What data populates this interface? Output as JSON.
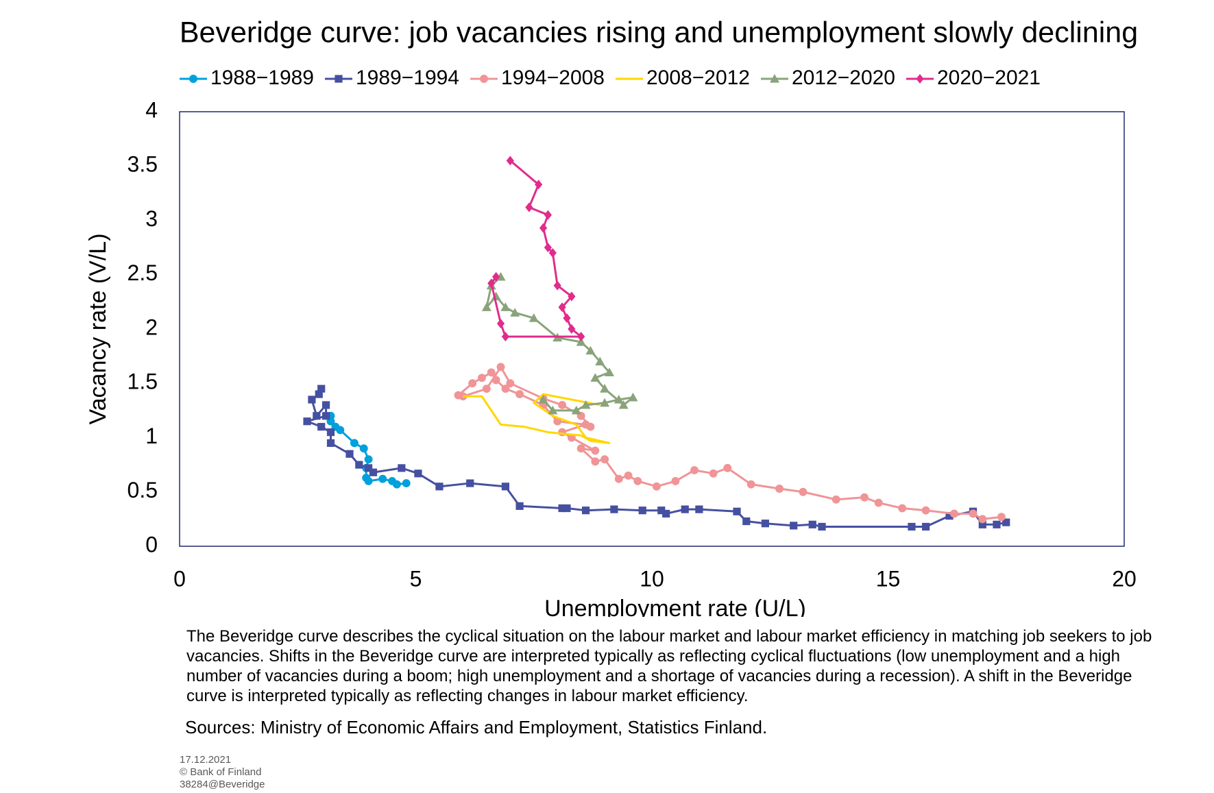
{
  "chart_data": {
    "type": "line",
    "title": "Beveridge curve: job vacancies rising and unemployment slowly declining",
    "x_label": "Unemployment rate (U/L)",
    "y_label": "Vacancy rate (V/L)",
    "xlim": [
      0,
      20
    ],
    "xticks": [
      0,
      5,
      10,
      15,
      20
    ],
    "ylim": [
      0,
      4
    ],
    "yticks": [
      0,
      0.5,
      1,
      1.5,
      2,
      2.5,
      3,
      3.5,
      4
    ],
    "grid": false,
    "legend": "top",
    "series": [
      {
        "name": "1988−1989",
        "color": "#00a0dc",
        "marker": "circle",
        "x": [
          4.8,
          4.6,
          4.5,
          4.3,
          4.0,
          3.95,
          3.95,
          4.0,
          3.9,
          3.7,
          3.4,
          3.3,
          3.2,
          3.2
        ],
        "values": [
          0.58,
          0.57,
          0.6,
          0.62,
          0.6,
          0.63,
          0.72,
          0.8,
          0.9,
          0.95,
          1.07,
          1.1,
          1.15,
          1.2
        ]
      },
      {
        "name": "1989−1994",
        "color": "#4650a0",
        "marker": "square",
        "x": [
          3.0,
          2.95,
          2.8,
          2.9,
          3.1,
          3.1,
          2.7,
          3.0,
          3.2,
          3.2,
          3.6,
          3.8,
          4.0,
          4.1,
          4.7,
          5.05,
          5.5,
          6.15,
          6.9,
          7.2,
          8.1,
          8.2,
          8.6,
          9.2,
          9.8,
          10.2,
          10.3,
          10.7,
          11.0,
          11.8,
          12.0,
          12.4,
          13.0,
          13.4,
          13.6,
          15.5,
          15.8,
          16.3,
          16.8,
          17.0,
          17.3,
          17.5
        ],
        "values": [
          1.45,
          1.4,
          1.35,
          1.2,
          1.3,
          1.2,
          1.15,
          1.1,
          1.05,
          0.95,
          0.85,
          0.75,
          0.72,
          0.68,
          0.72,
          0.67,
          0.55,
          0.58,
          0.55,
          0.37,
          0.35,
          0.35,
          0.33,
          0.34,
          0.33,
          0.33,
          0.3,
          0.34,
          0.34,
          0.32,
          0.23,
          0.21,
          0.19,
          0.2,
          0.18,
          0.18,
          0.18,
          0.28,
          0.32,
          0.2,
          0.2,
          0.22
        ]
      },
      {
        "name": "1994−2008",
        "color": "#f09496",
        "marker": "circle",
        "x": [
          17.4,
          17.0,
          16.8,
          16.4,
          15.8,
          15.3,
          14.8,
          14.5,
          13.9,
          13.2,
          12.7,
          12.1,
          11.6,
          11.3,
          10.9,
          10.5,
          10.1,
          9.7,
          9.5,
          9.3,
          9.0,
          8.8,
          8.5,
          8.8,
          8.3,
          8.1,
          8.6,
          8.0,
          7.7,
          7.2,
          6.9,
          6.7,
          6.6,
          6.4,
          6.2,
          5.9,
          6.0,
          6.5,
          6.8,
          7.0,
          7.7,
          8.1,
          8.5,
          8.7
        ],
        "values": [
          0.27,
          0.25,
          0.3,
          0.3,
          0.33,
          0.35,
          0.4,
          0.45,
          0.43,
          0.5,
          0.53,
          0.57,
          0.72,
          0.67,
          0.7,
          0.6,
          0.55,
          0.6,
          0.65,
          0.62,
          0.8,
          0.78,
          0.9,
          0.88,
          1.0,
          1.05,
          1.12,
          1.15,
          1.3,
          1.4,
          1.45,
          1.53,
          1.6,
          1.55,
          1.5,
          1.39,
          1.38,
          1.45,
          1.65,
          1.5,
          1.36,
          1.3,
          1.2,
          1.1
        ]
      },
      {
        "name": "2008−2012",
        "color": "#ffd700",
        "marker": "none",
        "x": [
          6.0,
          6.4,
          6.6,
          6.8,
          7.3,
          7.8,
          8.5,
          8.7,
          9.1,
          8.6,
          8.4,
          7.9,
          7.5,
          7.7,
          8.3,
          8.9
        ],
        "values": [
          1.38,
          1.38,
          1.25,
          1.12,
          1.1,
          1.05,
          1.02,
          0.97,
          0.95,
          1.0,
          1.12,
          1.2,
          1.32,
          1.4,
          1.35,
          1.3
        ]
      },
      {
        "name": "2012−2020",
        "color": "#8aa37b",
        "marker": "triangle",
        "x": [
          7.7,
          7.9,
          8.4,
          8.6,
          9.0,
          9.3,
          9.6,
          9.4,
          9.0,
          8.8,
          9.1,
          8.9,
          8.7,
          8.5,
          8.0,
          7.5,
          7.1,
          6.9,
          6.7,
          6.5,
          6.6,
          6.8
        ],
        "values": [
          1.35,
          1.25,
          1.25,
          1.3,
          1.32,
          1.35,
          1.37,
          1.3,
          1.45,
          1.55,
          1.6,
          1.7,
          1.8,
          1.88,
          1.92,
          2.1,
          2.15,
          2.2,
          2.3,
          2.2,
          2.4,
          2.48
        ]
      },
      {
        "name": "2020−2021",
        "color": "#e02c8c",
        "marker": "diamond",
        "x": [
          6.7,
          6.6,
          6.8,
          6.9,
          8.5,
          8.3,
          8.2,
          8.1,
          8.3,
          8.0,
          7.9,
          7.8,
          7.7,
          7.8,
          7.4,
          7.6,
          7.0
        ],
        "values": [
          2.48,
          2.42,
          2.05,
          1.93,
          1.93,
          2.0,
          2.1,
          2.2,
          2.3,
          2.4,
          2.7,
          2.75,
          2.93,
          3.05,
          3.12,
          3.33,
          3.55
        ]
      }
    ]
  },
  "description": "The Beveridge curve describes the cyclical situation on the labour market and labour market efficiency in matching job seekers to job vacancies. Shifts in the Beveridge curve are interpreted typically as reflecting cyclical fluctuations (low unemployment and a high number of vacancies during a boom; high unemployment and a shortage of vacancies during a recession). A shift in the Beveridge curve is interpreted typically as reflecting changes in labour market efficiency.",
  "sources": "Sources: Ministry of Economic Affairs and Employment, Statistics Finland.",
  "footer": {
    "date": "17.12.2021",
    "copyright": "© Bank of Finland",
    "id": "38284@Beveridge"
  }
}
